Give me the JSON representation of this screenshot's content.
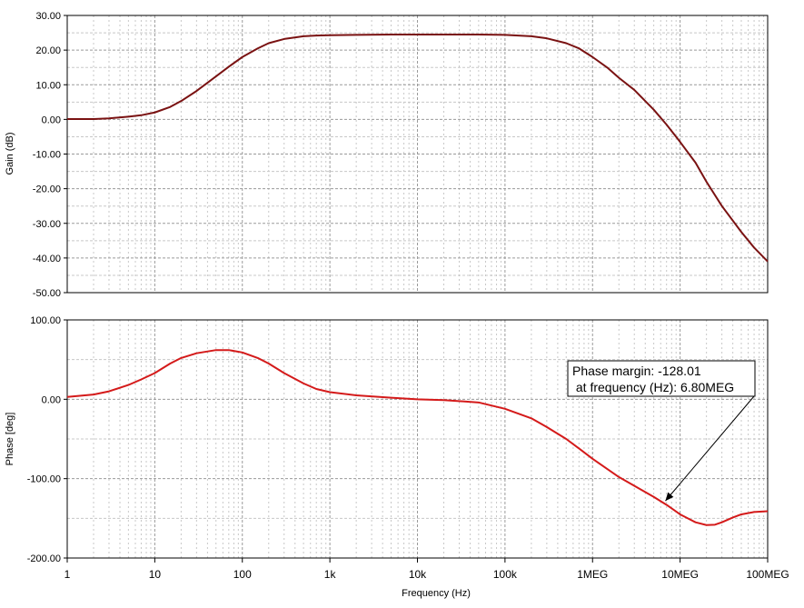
{
  "chart_data": [
    {
      "type": "line",
      "ylabel": "Gain (dB)",
      "xscale": "log",
      "xlim": [
        1,
        100000000
      ],
      "ylim": [
        -50,
        30
      ],
      "yticks": [
        "30.00",
        "20.00",
        "10.00",
        "0.00",
        "-10.00",
        "-20.00",
        "-30.00",
        "-40.00",
        "-50.00"
      ],
      "grid": true,
      "color": "#7a1212",
      "series": [
        {
          "x": [
            1,
            2,
            3,
            5,
            7,
            10,
            15,
            20,
            30,
            50,
            70,
            100,
            150,
            200,
            300,
            500,
            700,
            1000,
            2000,
            5000,
            10000,
            20000,
            50000,
            100000,
            200000,
            300000,
            500000,
            700000,
            1000000,
            1500000,
            2000000,
            3000000,
            5000000,
            7000000,
            10000000,
            15000000,
            20000000,
            30000000,
            50000000,
            70000000,
            100000000
          ],
          "y": [
            0.1,
            0.1,
            0.3,
            0.8,
            1.2,
            2.0,
            3.6,
            5.3,
            8.2,
            12.4,
            15.2,
            18.0,
            20.5,
            22.0,
            23.2,
            24.0,
            24.2,
            24.3,
            24.4,
            24.5,
            24.5,
            24.5,
            24.5,
            24.4,
            24.0,
            23.4,
            22.0,
            20.5,
            18.0,
            14.8,
            12.0,
            8.5,
            2.8,
            -1.5,
            -6.5,
            -12.5,
            -18.0,
            -25.0,
            -32.5,
            -37.0,
            -41.0
          ]
        }
      ]
    },
    {
      "type": "line",
      "xlabel": "Frequency (Hz)",
      "ylabel": "Phase [deg]",
      "xscale": "log",
      "xlim": [
        1,
        100000000
      ],
      "ylim": [
        -200,
        100
      ],
      "yticks": [
        "100.00",
        "0.00",
        "-100.00",
        "-200.00"
      ],
      "xticks": [
        {
          "value": 1,
          "label": "1"
        },
        {
          "value": 10,
          "label": "10"
        },
        {
          "value": 100,
          "label": "100"
        },
        {
          "value": 1000,
          "label": "1k"
        },
        {
          "value": 10000,
          "label": "10k"
        },
        {
          "value": 100000,
          "label": "100k"
        },
        {
          "value": 1000000,
          "label": "1MEG"
        },
        {
          "value": 10000000,
          "label": "10MEG"
        },
        {
          "value": 100000000,
          "label": "100MEG"
        }
      ],
      "grid": true,
      "color": "#d41a1a",
      "series": [
        {
          "x": [
            1,
            2,
            3,
            5,
            7,
            10,
            15,
            20,
            30,
            50,
            70,
            100,
            150,
            200,
            300,
            500,
            700,
            1000,
            2000,
            5000,
            10000,
            20000,
            50000,
            100000,
            200000,
            300000,
            500000,
            700000,
            1000000,
            2000000,
            5000000,
            7000000,
            10000000,
            15000000,
            20000000,
            25000000,
            30000000,
            40000000,
            50000000,
            70000000,
            100000000
          ],
          "y": [
            3,
            6,
            10,
            18,
            25,
            33,
            45,
            52,
            58,
            62,
            62,
            59,
            52,
            45,
            33,
            20,
            13,
            9,
            5,
            2,
            0,
            -1,
            -4,
            -12,
            -24,
            -35,
            -50,
            -62,
            -75,
            -98,
            -123,
            -133,
            -145,
            -155,
            -158.5,
            -158,
            -155,
            -149,
            -145,
            -142,
            -141
          ]
        }
      ],
      "annotation": {
        "line1": "Phase margin: -128.01",
        "line2": " at frequency (Hz): 6.80MEG",
        "x": 6800000,
        "y": -128.01
      }
    }
  ]
}
